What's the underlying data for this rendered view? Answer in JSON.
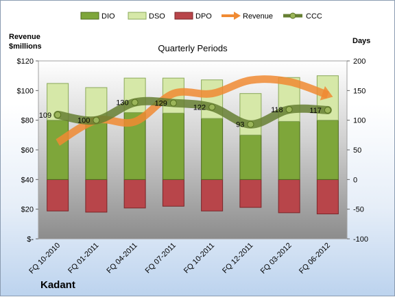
{
  "chart_data": {
    "type": "bar",
    "title": "Quarterly Periods",
    "company": "Kadant",
    "left_axis_title": [
      "Revenue",
      "$millions"
    ],
    "right_axis_title": "Days",
    "left_ticks": [
      "$120",
      "$100",
      "$80",
      "$60",
      "$40",
      "$20",
      "$-"
    ],
    "right_ticks": [
      "200",
      "150",
      "100",
      "50",
      "0",
      "-50",
      "-100"
    ],
    "left_range": [
      0,
      120
    ],
    "right_range": [
      -100,
      200
    ],
    "categories": [
      "FQ 10-2010",
      "FQ 01-2011",
      "FQ 04-2011",
      "FQ 07-2011",
      "FQ 10-2011",
      "FQ 12-2011",
      "FQ 03-2012",
      "FQ 06-2012"
    ],
    "series": [
      {
        "name": "DIO",
        "axis": "right",
        "color": "#7ea63a",
        "values": [
          100,
          95,
          113,
          112,
          103,
          75,
          98,
          100
        ]
      },
      {
        "name": "DSO",
        "axis": "right",
        "color": "#d6e8a8",
        "values": [
          62,
          60,
          58,
          59,
          65,
          70,
          74,
          75
        ]
      },
      {
        "name": "DPO",
        "axis": "right",
        "color": "#b8454a",
        "values": [
          -53,
          -55,
          -48,
          -45,
          -53,
          -47,
          -56,
          -58
        ]
      },
      {
        "name": "Revenue",
        "axis": "left",
        "color": "#f08a33",
        "values": [
          65,
          80,
          79,
          98,
          98,
          107,
          106,
          97
        ]
      },
      {
        "name": "CCC",
        "axis": "right",
        "color": "#667f33",
        "values": [
          109,
          100,
          130,
          129,
          122,
          93,
          118,
          117
        ]
      }
    ],
    "ccc_labels": [
      "109",
      "100",
      "130",
      "129",
      "122",
      "93",
      "118",
      "117"
    ],
    "grid": false,
    "legend_position": "top"
  }
}
